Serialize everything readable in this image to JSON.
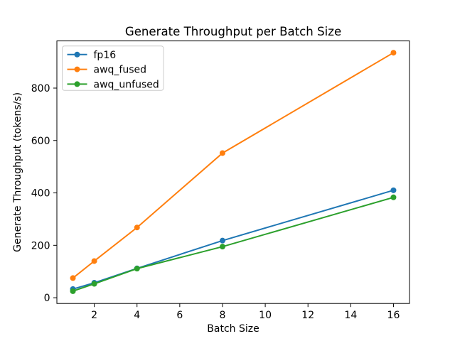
{
  "figure": {
    "background": "#ffffff"
  },
  "chart_data": {
    "type": "line",
    "title": "Generate Throughput per Batch Size",
    "xlabel": "Batch Size",
    "ylabel": "Generate Throughput (tokens/s)",
    "x": [
      1,
      2,
      4,
      8,
      16
    ],
    "series": [
      {
        "name": "fp16",
        "color": "#1f77b4",
        "values": [
          33,
          57,
          112,
          218,
          410
        ]
      },
      {
        "name": "awq_fused",
        "color": "#ff7f0e",
        "values": [
          75,
          140,
          268,
          552,
          935
        ]
      },
      {
        "name": "awq_unfused",
        "color": "#2ca02c",
        "values": [
          25,
          53,
          111,
          195,
          383
        ]
      }
    ],
    "xticks": [
      2,
      4,
      6,
      8,
      10,
      12,
      14,
      16
    ],
    "yticks": [
      0,
      200,
      400,
      600,
      800
    ],
    "xlim": [
      0.25,
      16.75
    ],
    "ylim": [
      -22,
      980
    ],
    "grid": false,
    "marker": "o",
    "legend_position": "upper left",
    "axis_color": "#000000",
    "legend_border_color": "#cccccc"
  }
}
